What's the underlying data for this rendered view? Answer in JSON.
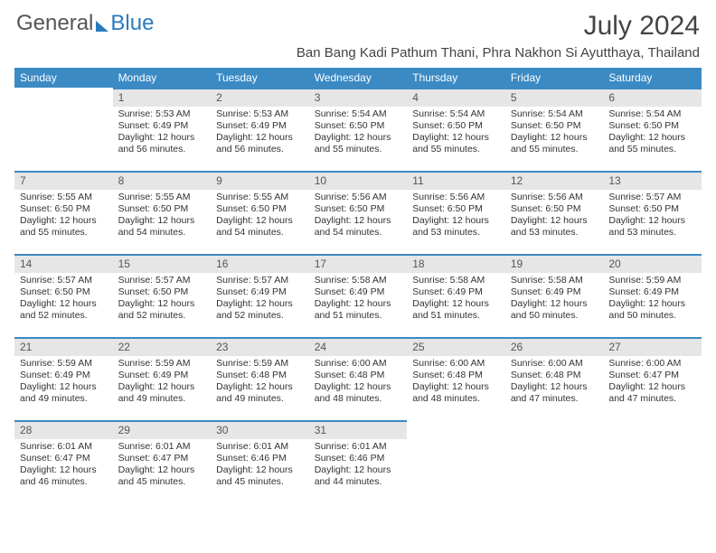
{
  "brand": {
    "general": "General",
    "blue": "Blue"
  },
  "title": {
    "month": "July 2024",
    "location": "Ban Bang Kadi Pathum Thani, Phra Nakhon Si Ayutthaya, Thailand"
  },
  "colors": {
    "header_bg": "#3b8ac4",
    "header_text": "#ffffff",
    "daynum_bg": "#e6e6e6",
    "daynum_border": "#3b8ac4",
    "text": "#333333",
    "logo_gray": "#555555",
    "logo_blue": "#2a7bbd",
    "background": "#ffffff"
  },
  "dow": [
    "Sunday",
    "Monday",
    "Tuesday",
    "Wednesday",
    "Thursday",
    "Friday",
    "Saturday"
  ],
  "weeks": [
    [
      null,
      {
        "n": "1",
        "sr": "Sunrise: 5:53 AM",
        "ss": "Sunset: 6:49 PM",
        "dl": "Daylight: 12 hours and 56 minutes."
      },
      {
        "n": "2",
        "sr": "Sunrise: 5:53 AM",
        "ss": "Sunset: 6:49 PM",
        "dl": "Daylight: 12 hours and 56 minutes."
      },
      {
        "n": "3",
        "sr": "Sunrise: 5:54 AM",
        "ss": "Sunset: 6:50 PM",
        "dl": "Daylight: 12 hours and 55 minutes."
      },
      {
        "n": "4",
        "sr": "Sunrise: 5:54 AM",
        "ss": "Sunset: 6:50 PM",
        "dl": "Daylight: 12 hours and 55 minutes."
      },
      {
        "n": "5",
        "sr": "Sunrise: 5:54 AM",
        "ss": "Sunset: 6:50 PM",
        "dl": "Daylight: 12 hours and 55 minutes."
      },
      {
        "n": "6",
        "sr": "Sunrise: 5:54 AM",
        "ss": "Sunset: 6:50 PM",
        "dl": "Daylight: 12 hours and 55 minutes."
      }
    ],
    [
      {
        "n": "7",
        "sr": "Sunrise: 5:55 AM",
        "ss": "Sunset: 6:50 PM",
        "dl": "Daylight: 12 hours and 55 minutes."
      },
      {
        "n": "8",
        "sr": "Sunrise: 5:55 AM",
        "ss": "Sunset: 6:50 PM",
        "dl": "Daylight: 12 hours and 54 minutes."
      },
      {
        "n": "9",
        "sr": "Sunrise: 5:55 AM",
        "ss": "Sunset: 6:50 PM",
        "dl": "Daylight: 12 hours and 54 minutes."
      },
      {
        "n": "10",
        "sr": "Sunrise: 5:56 AM",
        "ss": "Sunset: 6:50 PM",
        "dl": "Daylight: 12 hours and 54 minutes."
      },
      {
        "n": "11",
        "sr": "Sunrise: 5:56 AM",
        "ss": "Sunset: 6:50 PM",
        "dl": "Daylight: 12 hours and 53 minutes."
      },
      {
        "n": "12",
        "sr": "Sunrise: 5:56 AM",
        "ss": "Sunset: 6:50 PM",
        "dl": "Daylight: 12 hours and 53 minutes."
      },
      {
        "n": "13",
        "sr": "Sunrise: 5:57 AM",
        "ss": "Sunset: 6:50 PM",
        "dl": "Daylight: 12 hours and 53 minutes."
      }
    ],
    [
      {
        "n": "14",
        "sr": "Sunrise: 5:57 AM",
        "ss": "Sunset: 6:50 PM",
        "dl": "Daylight: 12 hours and 52 minutes."
      },
      {
        "n": "15",
        "sr": "Sunrise: 5:57 AM",
        "ss": "Sunset: 6:50 PM",
        "dl": "Daylight: 12 hours and 52 minutes."
      },
      {
        "n": "16",
        "sr": "Sunrise: 5:57 AM",
        "ss": "Sunset: 6:49 PM",
        "dl": "Daylight: 12 hours and 52 minutes."
      },
      {
        "n": "17",
        "sr": "Sunrise: 5:58 AM",
        "ss": "Sunset: 6:49 PM",
        "dl": "Daylight: 12 hours and 51 minutes."
      },
      {
        "n": "18",
        "sr": "Sunrise: 5:58 AM",
        "ss": "Sunset: 6:49 PM",
        "dl": "Daylight: 12 hours and 51 minutes."
      },
      {
        "n": "19",
        "sr": "Sunrise: 5:58 AM",
        "ss": "Sunset: 6:49 PM",
        "dl": "Daylight: 12 hours and 50 minutes."
      },
      {
        "n": "20",
        "sr": "Sunrise: 5:59 AM",
        "ss": "Sunset: 6:49 PM",
        "dl": "Daylight: 12 hours and 50 minutes."
      }
    ],
    [
      {
        "n": "21",
        "sr": "Sunrise: 5:59 AM",
        "ss": "Sunset: 6:49 PM",
        "dl": "Daylight: 12 hours and 49 minutes."
      },
      {
        "n": "22",
        "sr": "Sunrise: 5:59 AM",
        "ss": "Sunset: 6:49 PM",
        "dl": "Daylight: 12 hours and 49 minutes."
      },
      {
        "n": "23",
        "sr": "Sunrise: 5:59 AM",
        "ss": "Sunset: 6:48 PM",
        "dl": "Daylight: 12 hours and 49 minutes."
      },
      {
        "n": "24",
        "sr": "Sunrise: 6:00 AM",
        "ss": "Sunset: 6:48 PM",
        "dl": "Daylight: 12 hours and 48 minutes."
      },
      {
        "n": "25",
        "sr": "Sunrise: 6:00 AM",
        "ss": "Sunset: 6:48 PM",
        "dl": "Daylight: 12 hours and 48 minutes."
      },
      {
        "n": "26",
        "sr": "Sunrise: 6:00 AM",
        "ss": "Sunset: 6:48 PM",
        "dl": "Daylight: 12 hours and 47 minutes."
      },
      {
        "n": "27",
        "sr": "Sunrise: 6:00 AM",
        "ss": "Sunset: 6:47 PM",
        "dl": "Daylight: 12 hours and 47 minutes."
      }
    ],
    [
      {
        "n": "28",
        "sr": "Sunrise: 6:01 AM",
        "ss": "Sunset: 6:47 PM",
        "dl": "Daylight: 12 hours and 46 minutes."
      },
      {
        "n": "29",
        "sr": "Sunrise: 6:01 AM",
        "ss": "Sunset: 6:47 PM",
        "dl": "Daylight: 12 hours and 45 minutes."
      },
      {
        "n": "30",
        "sr": "Sunrise: 6:01 AM",
        "ss": "Sunset: 6:46 PM",
        "dl": "Daylight: 12 hours and 45 minutes."
      },
      {
        "n": "31",
        "sr": "Sunrise: 6:01 AM",
        "ss": "Sunset: 6:46 PM",
        "dl": "Daylight: 12 hours and 44 minutes."
      },
      null,
      null,
      null
    ]
  ]
}
